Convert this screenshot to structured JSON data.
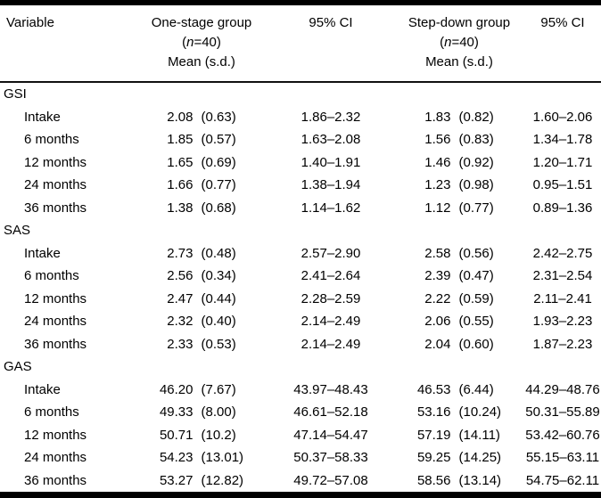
{
  "table": {
    "header": {
      "variable": "Variable",
      "groups": [
        {
          "name": "One-stage group",
          "n_open": "(",
          "n_italic": "n",
          "n_rest": "=40)",
          "measure": "Mean (s.d.)",
          "ci": "95% CI"
        },
        {
          "name": "Step-down group",
          "n_open": "(",
          "n_italic": "n",
          "n_rest": "=40)",
          "measure": "Mean (s.d.)",
          "ci": "95% CI"
        }
      ]
    },
    "sections": [
      {
        "name": "GSI",
        "rows": [
          {
            "label": "Intake",
            "g1_mean": "2.08",
            "g1_sd": "(0.63)",
            "g1_ci": "1.86–2.32",
            "g2_mean": "1.83",
            "g2_sd": "(0.82)",
            "g2_ci": "1.60–2.06"
          },
          {
            "label": "6 months",
            "g1_mean": "1.85",
            "g1_sd": "(0.57)",
            "g1_ci": "1.63–2.08",
            "g2_mean": "1.56",
            "g2_sd": "(0.83)",
            "g2_ci": "1.34–1.78"
          },
          {
            "label": "12 months",
            "g1_mean": "1.65",
            "g1_sd": "(0.69)",
            "g1_ci": "1.40–1.91",
            "g2_mean": "1.46",
            "g2_sd": "(0.92)",
            "g2_ci": "1.20–1.71"
          },
          {
            "label": "24 months",
            "g1_mean": "1.66",
            "g1_sd": "(0.77)",
            "g1_ci": "1.38–1.94",
            "g2_mean": "1.23",
            "g2_sd": "(0.98)",
            "g2_ci": "0.95–1.51"
          },
          {
            "label": "36 months",
            "g1_mean": "1.38",
            "g1_sd": "(0.68)",
            "g1_ci": "1.14–1.62",
            "g2_mean": "1.12",
            "g2_sd": "(0.77)",
            "g2_ci": "0.89–1.36"
          }
        ]
      },
      {
        "name": "SAS",
        "rows": [
          {
            "label": "Intake",
            "g1_mean": "2.73",
            "g1_sd": "(0.48)",
            "g1_ci": "2.57–2.90",
            "g2_mean": "2.58",
            "g2_sd": "(0.56)",
            "g2_ci": "2.42–2.75"
          },
          {
            "label": "6 months",
            "g1_mean": "2.56",
            "g1_sd": "(0.34)",
            "g1_ci": "2.41–2.64",
            "g2_mean": "2.39",
            "g2_sd": "(0.47)",
            "g2_ci": "2.31–2.54"
          },
          {
            "label": "12 months",
            "g1_mean": "2.47",
            "g1_sd": "(0.44)",
            "g1_ci": "2.28–2.59",
            "g2_mean": "2.22",
            "g2_sd": "(0.59)",
            "g2_ci": "2.11–2.41"
          },
          {
            "label": "24 months",
            "g1_mean": "2.32",
            "g1_sd": "(0.40)",
            "g1_ci": "2.14–2.49",
            "g2_mean": "2.06",
            "g2_sd": "(0.55)",
            "g2_ci": "1.93–2.23"
          },
          {
            "label": "36 months",
            "g1_mean": "2.33",
            "g1_sd": "(0.53)",
            "g1_ci": "2.14–2.49",
            "g2_mean": "2.04",
            "g2_sd": "(0.60)",
            "g2_ci": "1.87–2.23"
          }
        ]
      },
      {
        "name": "GAS",
        "rows": [
          {
            "label": "Intake",
            "g1_mean": "46.20",
            "g1_sd": "(7.67)",
            "g1_ci": "43.97–48.43",
            "g2_mean": "46.53",
            "g2_sd": "(6.44)",
            "g2_ci": "44.29–48.76"
          },
          {
            "label": "6 months",
            "g1_mean": "49.33",
            "g1_sd": "(8.00)",
            "g1_ci": "46.61–52.18",
            "g2_mean": "53.16",
            "g2_sd": "(10.24)",
            "g2_ci": "50.31–55.89"
          },
          {
            "label": "12 months",
            "g1_mean": "50.71",
            "g1_sd": "(10.2)",
            "g1_ci": "47.14–54.47",
            "g2_mean": "57.19",
            "g2_sd": "(14.11)",
            "g2_ci": "53.42–60.76"
          },
          {
            "label": "24 months",
            "g1_mean": "54.23",
            "g1_sd": "(13.01)",
            "g1_ci": "50.37–58.33",
            "g2_mean": "59.25",
            "g2_sd": "(14.25)",
            "g2_ci": "55.15–63.11"
          },
          {
            "label": "36 months",
            "g1_mean": "53.27",
            "g1_sd": "(12.82)",
            "g1_ci": "49.72–57.08",
            "g2_mean": "58.56",
            "g2_sd": "(13.14)",
            "g2_ci": "54.75–62.11"
          }
        ]
      }
    ]
  }
}
